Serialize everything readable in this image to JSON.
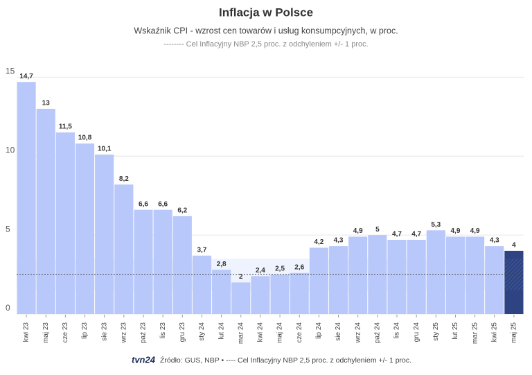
{
  "chart_data": {
    "type": "bar",
    "title": "Inflacja w Polsce",
    "subtitle": "Wskaźnik CPI - wzrost cen towarów i usług konsumpcyjnych, w proc.",
    "subtitle2": "-------- Cel Inflacyjny NBP 2,5 proc. z odchyleniem +/- 1 proc.",
    "categories": [
      "kwi 23",
      "maj 23",
      "cze 23",
      "lip 23",
      "sie 23",
      "wrz 23",
      "paź 23",
      "lis 23",
      "gru 23",
      "sty 24",
      "lut 24",
      "mar 24",
      "kwi 24",
      "maj 24",
      "cze 24",
      "lip 24",
      "sie 24",
      "wrz 24",
      "paź 24",
      "lis 24",
      "gru 24",
      "sty 25",
      "lut 25",
      "mar 25",
      "kwi 25",
      "maj 25"
    ],
    "values": [
      14.7,
      13,
      11.5,
      10.8,
      10.1,
      8.2,
      6.6,
      6.6,
      6.2,
      3.7,
      2.8,
      2,
      2.4,
      2.5,
      2.6,
      4.2,
      4.3,
      4.9,
      5,
      4.7,
      4.7,
      5.3,
      4.9,
      4.9,
      4.3,
      4
    ],
    "value_labels": [
      "14,7",
      "13",
      "11,5",
      "10,8",
      "10,1",
      "8,2",
      "6,6",
      "6,6",
      "6,2",
      "3,7",
      "2,8",
      "2",
      "2,4",
      "2,5",
      "2,6",
      "4,2",
      "4,3",
      "4,9",
      "5",
      "4,7",
      "4,7",
      "5,3",
      "4,9",
      "4,9",
      "4,3",
      "4"
    ],
    "color": "#b9c8fb",
    "highlight_color": "#2e4482",
    "highlight_index": 25,
    "target_line": 2.5,
    "target_range": [
      1.5,
      3.5
    ],
    "ylim": [
      0,
      15.5
    ],
    "yticks": [
      0,
      5,
      10,
      15
    ],
    "grid": true,
    "logo": "tvn24",
    "source": "Źródło: GUS, NBP • ---- Cel Inflacyjny NBP 2,5 proc. z odchyleniem +/- 1 proc."
  }
}
